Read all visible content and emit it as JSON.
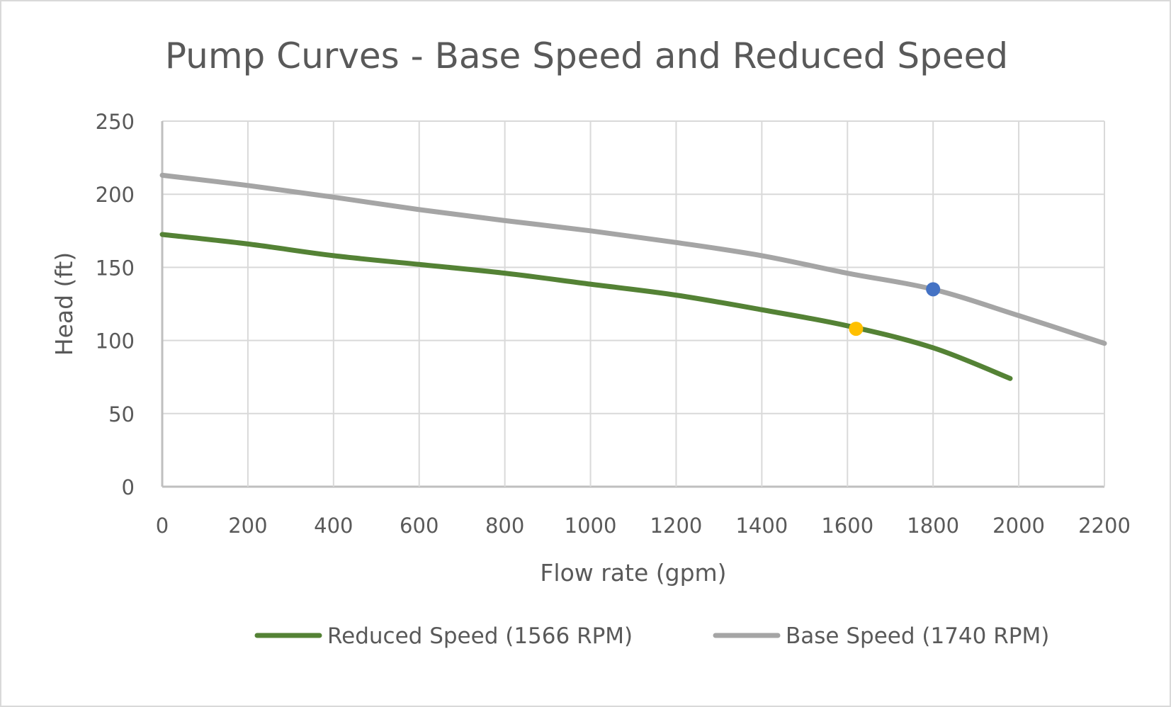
{
  "chart_data": {
    "type": "line",
    "title": "Pump Curves - Base Speed and Reduced Speed",
    "xlabel": "Flow rate (gpm)",
    "ylabel": "Head (ft)",
    "xlim": [
      0,
      2200
    ],
    "ylim": [
      0,
      250
    ],
    "xticks": [
      0,
      200,
      400,
      600,
      800,
      1000,
      1200,
      1400,
      1600,
      1800,
      2000,
      2200
    ],
    "yticks": [
      0,
      50,
      100,
      150,
      200,
      250
    ],
    "grid": true,
    "legend_position": "bottom",
    "series": [
      {
        "name": "Reduced Speed (1566 RPM)",
        "color": "#548235",
        "x": [
          0,
          200,
          400,
          600,
          800,
          1000,
          1200,
          1400,
          1600,
          1800,
          1980
        ],
        "y": [
          172.5,
          166,
          158,
          152,
          146,
          138.5,
          131,
          121,
          110,
          95,
          74
        ]
      },
      {
        "name": "Base Speed (1740 RPM)",
        "color": "#a5a5a5",
        "x": [
          0,
          200,
          400,
          600,
          800,
          1000,
          1200,
          1400,
          1600,
          1800,
          2000,
          2200
        ],
        "y": [
          213,
          206,
          198,
          189.5,
          182,
          175,
          167,
          158,
          146,
          135,
          117,
          98
        ]
      }
    ],
    "markers": [
      {
        "name": "Base speed operating point",
        "x": 1800,
        "y": 135,
        "color": "#4472c4"
      },
      {
        "name": "Reduced speed operating point",
        "x": 1620,
        "y": 108,
        "color": "#ffc000"
      }
    ]
  }
}
